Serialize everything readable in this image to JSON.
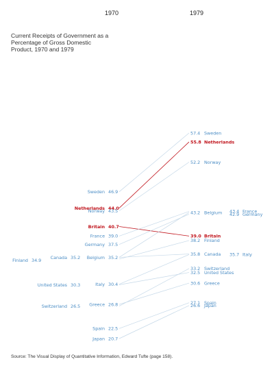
{
  "chart_data": {
    "type": "slopegraph",
    "title_lines": [
      "Current Receipts of Government as a",
      "Percentage of Gross Domestic",
      "Product, 1970 and 1979"
    ],
    "x": [
      "1970",
      "1979"
    ],
    "source": "Source: The Visual Display of Quantitative Information, Edward Tufte (page 158).",
    "colors": {
      "normal": "#4a8cc4",
      "highlight": "#c0141c",
      "line": "#c5d8e8"
    },
    "series": [
      {
        "name": "Sweden",
        "values": [
          46.9,
          57.4
        ]
      },
      {
        "name": "Netherlands",
        "values": [
          44.0,
          55.8
        ],
        "highlight": true
      },
      {
        "name": "Norway",
        "values": [
          43.5,
          52.2
        ]
      },
      {
        "name": "Britain",
        "values": [
          40.7,
          39.0
        ],
        "highlight": true
      },
      {
        "name": "France",
        "values": [
          39.0,
          43.4
        ]
      },
      {
        "name": "Germany",
        "values": [
          37.5,
          42.9
        ]
      },
      {
        "name": "Belgium",
        "values": [
          35.2,
          43.2
        ]
      },
      {
        "name": "Canada",
        "values": [
          35.2,
          35.8
        ]
      },
      {
        "name": "Finland",
        "values": [
          34.9,
          38.2
        ]
      },
      {
        "name": "Italy",
        "values": [
          30.4,
          35.7
        ]
      },
      {
        "name": "United States",
        "values": [
          30.3,
          32.5
        ]
      },
      {
        "name": "Greece",
        "values": [
          26.8,
          30.6
        ]
      },
      {
        "name": "Switzerland",
        "values": [
          26.5,
          33.2
        ]
      },
      {
        "name": "Spain",
        "values": [
          22.5,
          27.1
        ]
      },
      {
        "name": "Japan",
        "values": [
          20.7,
          26.6
        ]
      }
    ]
  }
}
